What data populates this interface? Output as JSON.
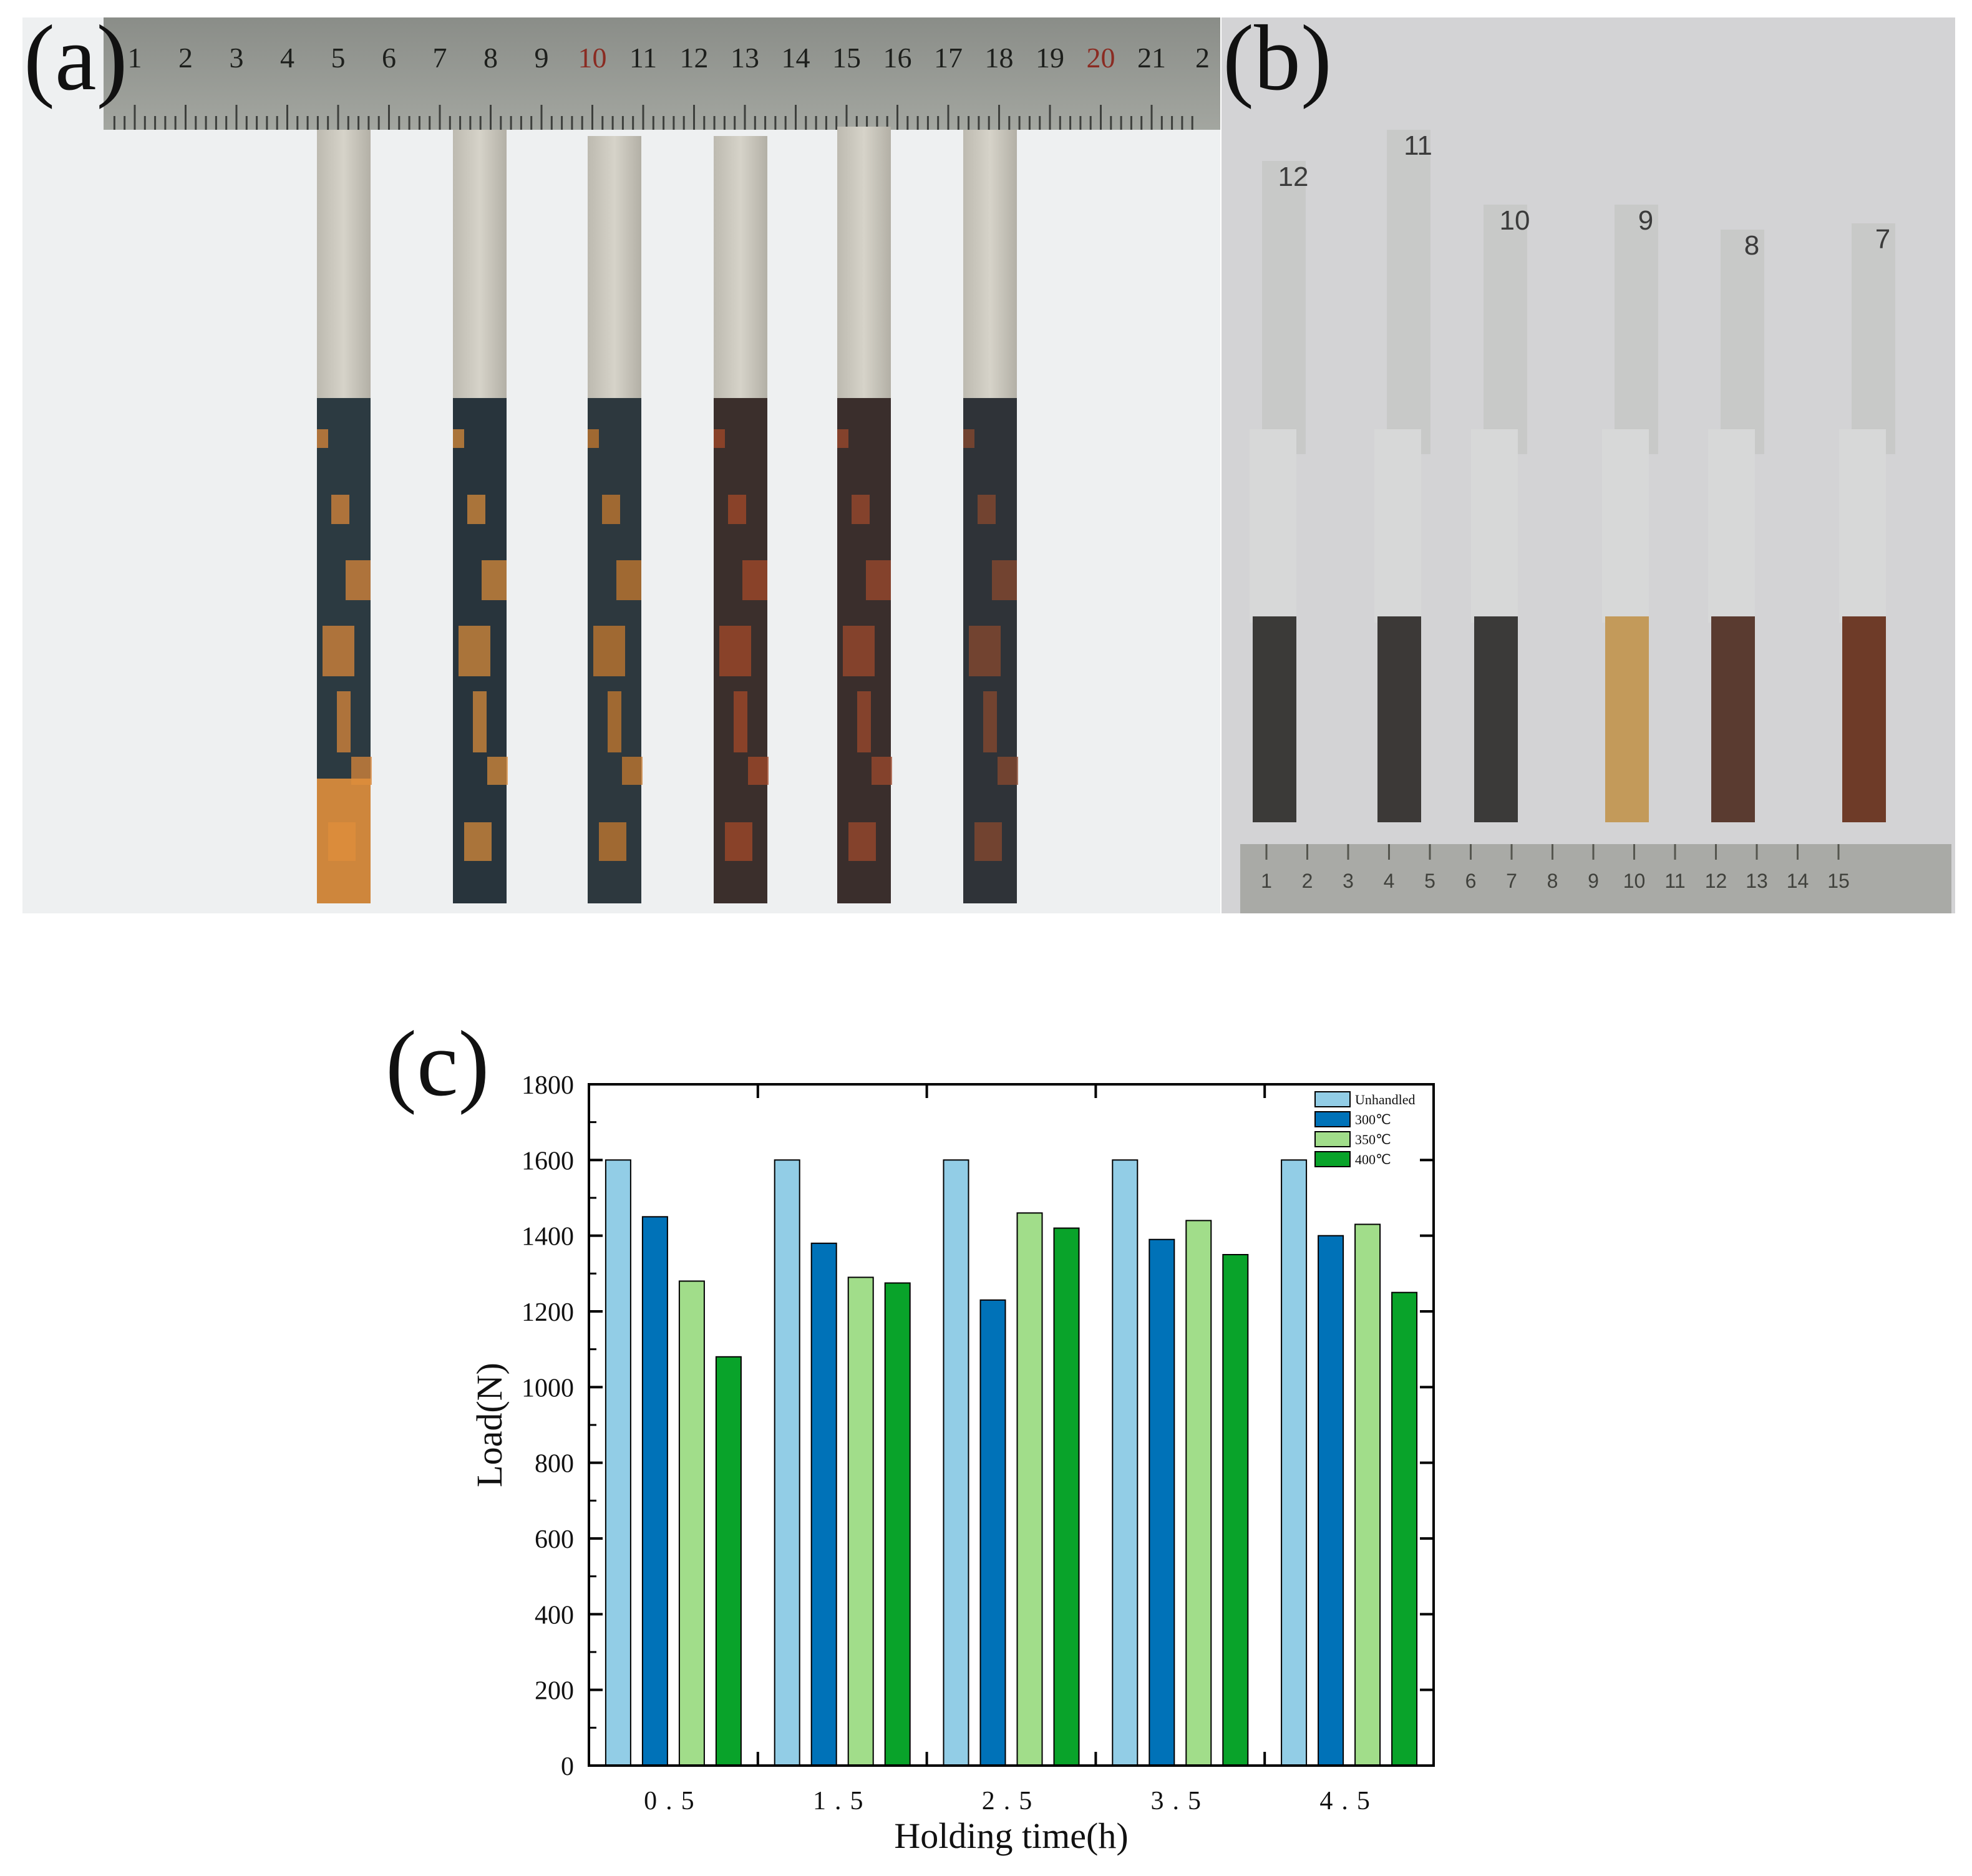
{
  "panels": {
    "a_label": "(a)",
    "b_label": "(b)",
    "c_label": "(c)"
  },
  "ruler_a": {
    "numbers": [
      "1",
      "2",
      "3",
      "4",
      "5",
      "6",
      "7",
      "8",
      "9",
      "10",
      "11",
      "12",
      "13",
      "14",
      "15",
      "16",
      "17",
      "18",
      "19",
      "20",
      "21",
      "2"
    ],
    "highlight": [
      "10",
      "20"
    ]
  },
  "ruler_b": {
    "numbers": [
      "1",
      "2",
      "3",
      "4",
      "5",
      "6",
      "7",
      "8",
      "9",
      "10",
      "11",
      "12",
      "13",
      "14",
      "15"
    ]
  },
  "specimen_marks_b": [
    "12",
    "11",
    "10",
    "9",
    "8",
    "7"
  ],
  "colors": {
    "unhandled": "#92cde6",
    "t300": "#0072b8",
    "t350": "#a1dd8a",
    "t400": "#09a32a"
  },
  "chart_data": {
    "type": "bar",
    "title": "",
    "xlabel": "Holding time(h)",
    "ylabel": "Load(N)",
    "categories": [
      "0.5",
      "1.5",
      "2.5",
      "3.5",
      "4.5"
    ],
    "ylim": [
      0,
      1800
    ],
    "yticks": [
      "0",
      "200",
      "400",
      "600",
      "800",
      "1000",
      "1200",
      "1400",
      "1600",
      "1800"
    ],
    "legend": "top-right",
    "series": [
      {
        "name": "Unhandled",
        "values": [
          1600,
          1600,
          1600,
          1600,
          1600
        ]
      },
      {
        "name": "300℃",
        "values": [
          1450,
          1380,
          1230,
          1390,
          1400
        ]
      },
      {
        "name": "350℃",
        "values": [
          1280,
          1290,
          1460,
          1440,
          1430
        ]
      },
      {
        "name": "400℃",
        "values": [
          1080,
          1275,
          1420,
          1350,
          1250
        ]
      }
    ]
  }
}
